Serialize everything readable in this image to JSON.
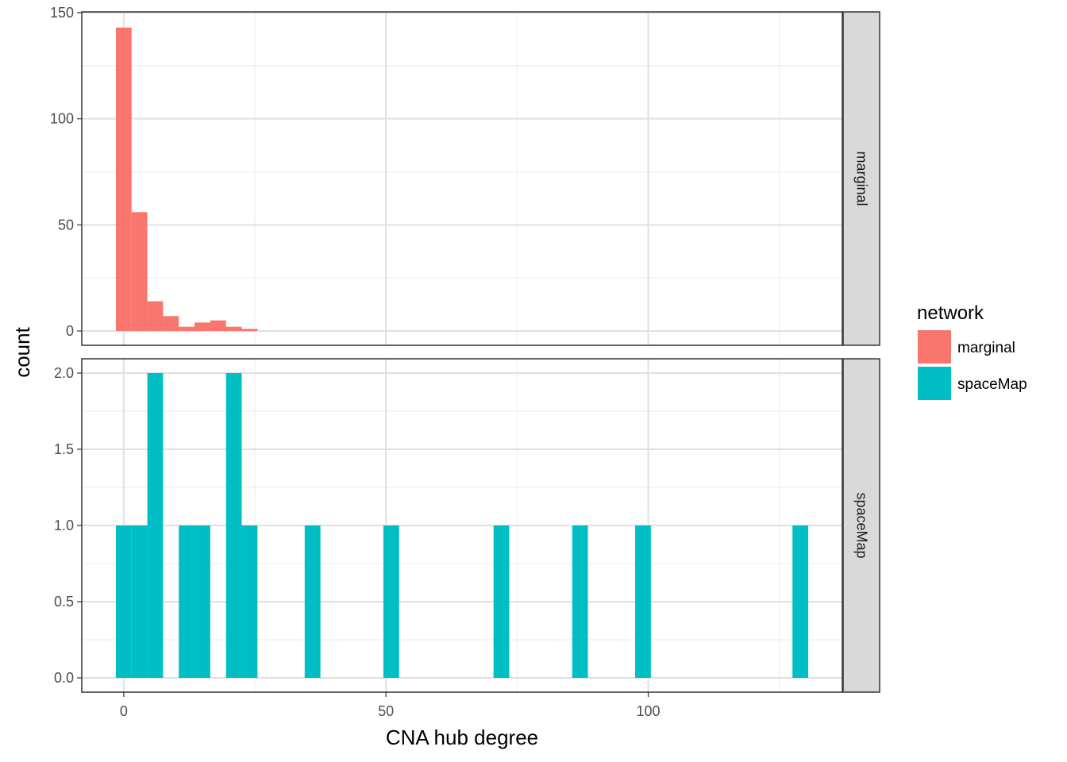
{
  "chart_data": {
    "type": "bar",
    "subtype": "faceted-histogram",
    "xlabel": "CNA hub degree",
    "ylabel": "count",
    "xlim": [
      -8,
      137
    ],
    "x_ticks": [
      0,
      50,
      100
    ],
    "grid": true,
    "legend": {
      "title": "network",
      "placement": "right",
      "entries": [
        {
          "label": "marginal",
          "color": "#F8766D"
        },
        {
          "label": "spaceMap",
          "color": "#00BFC4"
        }
      ]
    },
    "bin_width": 3,
    "facets": [
      {
        "strip": "marginal",
        "series": "marginal",
        "color": "#F8766D",
        "ylim": [
          -7,
          150
        ],
        "y_ticks": [
          0,
          50,
          100,
          150
        ],
        "y_tick_labels": [
          "0",
          "50",
          "100",
          "150"
        ],
        "bins": [
          {
            "x": 0,
            "count": 143
          },
          {
            "x": 3,
            "count": 56
          },
          {
            "x": 6,
            "count": 14
          },
          {
            "x": 9,
            "count": 7
          },
          {
            "x": 12,
            "count": 2
          },
          {
            "x": 15,
            "count": 4
          },
          {
            "x": 18,
            "count": 5
          },
          {
            "x": 21,
            "count": 2
          },
          {
            "x": 24,
            "count": 1
          }
        ]
      },
      {
        "strip": "spaceMap",
        "series": "spaceMap",
        "color": "#00BFC4",
        "ylim": [
          -0.1,
          2.0
        ],
        "y_ticks": [
          0,
          0.5,
          1.0,
          1.5,
          2.0
        ],
        "y_tick_labels": [
          "0.0",
          "0.5",
          "1.0",
          "1.5",
          "2.0"
        ],
        "bins": [
          {
            "x": 0,
            "count": 1
          },
          {
            "x": 3,
            "count": 1
          },
          {
            "x": 6,
            "count": 2
          },
          {
            "x": 12,
            "count": 1
          },
          {
            "x": 15,
            "count": 1
          },
          {
            "x": 21,
            "count": 2
          },
          {
            "x": 24,
            "count": 1
          },
          {
            "x": 36,
            "count": 1
          },
          {
            "x": 51,
            "count": 1
          },
          {
            "x": 72,
            "count": 1
          },
          {
            "x": 87,
            "count": 1
          },
          {
            "x": 99,
            "count": 1
          },
          {
            "x": 129,
            "count": 1
          }
        ]
      }
    ]
  }
}
